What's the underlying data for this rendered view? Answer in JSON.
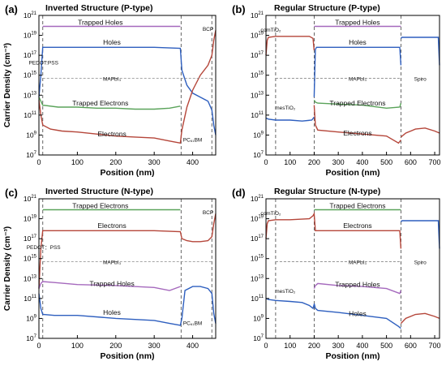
{
  "figure": {
    "axis_colors": {
      "axis": "#000000",
      "divider": "#555555",
      "region_line": "#888888"
    },
    "series_colors": {
      "trapped_top": "#a569bd",
      "trapped_top_e": "#5aa35a",
      "majority_h": "#2e5fbf",
      "majority_e": "#b5463a",
      "minority_e": "#b5463a",
      "minority_h": "#2e5fbf",
      "trapped_e": "#5aa35a",
      "trapped_h": "#a569bd"
    }
  },
  "chart_data": [
    {
      "panel": "(a)",
      "title": "Inverted Structure (P-type)",
      "type": "line",
      "xlabel": "Position (nm)",
      "ylabel": "Carrier Density (cm⁻³)",
      "xlim": [
        0,
        460
      ],
      "ylim_log10": [
        7,
        21
      ],
      "xticks": [
        0,
        100,
        200,
        300,
        400
      ],
      "yticks": [
        "10^7",
        "10^9",
        "10^11",
        "10^13",
        "10^15",
        "10^17",
        "10^19",
        "10^21"
      ],
      "dividers_x": [
        10,
        370,
        450
      ],
      "region_labels": [
        {
          "text": "Trapped Holes",
          "x": 160,
          "y": 20.3
        },
        {
          "text": "Holes",
          "x": 190,
          "y": 18.3
        },
        {
          "text": "MAPbI₃",
          "x": 190,
          "y": 14.7
        },
        {
          "text": "Trapped Electrons",
          "x": 160,
          "y": 12.2
        },
        {
          "text": "Electrons",
          "x": 190,
          "y": 9.1
        },
        {
          "text": "PEDOT:PSS",
          "x": 12,
          "y": 16.3
        },
        {
          "text": "PC₆₁BM",
          "x": 400,
          "y": 8.6
        },
        {
          "text": "BCP",
          "x": 440,
          "y": 19.7
        }
      ],
      "series": [
        {
          "key": "trapped_top",
          "x": [
            10,
            368
          ],
          "y": [
            19.9,
            19.9
          ]
        },
        {
          "key": "majority_h",
          "x": [
            0,
            5,
            10,
            50,
            100,
            200,
            300,
            368,
            372,
            385,
            400,
            420,
            440,
            450,
            455,
            460
          ],
          "y": [
            12.8,
            15.0,
            17.8,
            17.8,
            17.8,
            17.8,
            17.8,
            17.7,
            15.5,
            14.0,
            13.2,
            12.8,
            12.4,
            11.5,
            10.0,
            9.0
          ]
        },
        {
          "key": "minority_e",
          "x": [
            0,
            5,
            10,
            30,
            60,
            100,
            150,
            200,
            250,
            300,
            340,
            368,
            372,
            385,
            400,
            420,
            440,
            450,
            455,
            460
          ],
          "y": [
            12.5,
            11.0,
            10.0,
            9.6,
            9.4,
            9.3,
            9.1,
            8.9,
            8.8,
            8.7,
            8.4,
            8.2,
            9.5,
            11.8,
            13.5,
            15.0,
            16.0,
            17.0,
            18.5,
            19.5
          ]
        },
        {
          "key": "trapped_e",
          "x": [
            0,
            5,
            10,
            50,
            100,
            150,
            200,
            250,
            300,
            340,
            368
          ],
          "y": [
            12.8,
            12.4,
            12.0,
            11.8,
            11.8,
            11.7,
            11.7,
            11.6,
            11.6,
            11.7,
            11.9
          ]
        }
      ]
    },
    {
      "panel": "(b)",
      "title": "Regular Structure (P-type)",
      "type": "line",
      "xlabel": "Position (nm)",
      "ylabel": "",
      "xlim": [
        0,
        720
      ],
      "ylim_log10": [
        7,
        21
      ],
      "xticks": [
        0,
        100,
        200,
        300,
        400,
        500,
        600,
        700
      ],
      "yticks": [
        "10^7",
        "10^9",
        "10^11",
        "10^13",
        "10^15",
        "10^17",
        "10^19",
        "10^21"
      ],
      "dividers_x": [
        40,
        200,
        560
      ],
      "region_labels": [
        {
          "text": "comTiO₂",
          "x": 20,
          "y": 19.6
        },
        {
          "text": "Trapped Holes",
          "x": 380,
          "y": 20.3
        },
        {
          "text": "Holes",
          "x": 380,
          "y": 18.3
        },
        {
          "text": "MAPbI₃",
          "x": 380,
          "y": 14.7
        },
        {
          "text": "Spiro",
          "x": 640,
          "y": 14.7
        },
        {
          "text": "mesTiO₂",
          "x": 80,
          "y": 11.8
        },
        {
          "text": "Trapped Electrons",
          "x": 380,
          "y": 12.2
        },
        {
          "text": "Electrons",
          "x": 380,
          "y": 9.2
        }
      ],
      "series": [
        {
          "key": "trapped_top",
          "x": [
            200,
            560
          ],
          "y": [
            19.9,
            19.9
          ]
        },
        {
          "key": "minority_e",
          "x": [
            0,
            5,
            10,
            40,
            100,
            180,
            195,
            200
          ],
          "y": [
            17.0,
            18.5,
            18.8,
            18.9,
            18.9,
            18.9,
            18.7,
            17.5
          ]
        },
        {
          "key": "majority_h",
          "x": [
            0,
            10,
            40,
            100,
            150,
            190,
            200
          ],
          "y": [
            10.7,
            10.6,
            10.5,
            10.5,
            10.4,
            10.5,
            10.8
          ]
        },
        {
          "key": "majority_h",
          "x": [
            200,
            205,
            210,
            300,
            400,
            500,
            555,
            560
          ],
          "y": [
            12.8,
            17.6,
            17.8,
            17.8,
            17.8,
            17.8,
            17.8,
            16.0
          ]
        },
        {
          "key": "majority_h",
          "x": [
            560,
            565,
            600,
            700,
            715,
            720
          ],
          "y": [
            18.7,
            18.8,
            18.8,
            18.8,
            18.8,
            16.0
          ]
        },
        {
          "key": "trapped_e",
          "x": [
            200,
            205,
            215,
            300,
            400,
            500,
            555,
            560
          ],
          "y": [
            12.5,
            12.3,
            12.2,
            12.1,
            12.0,
            11.7,
            11.8,
            12.2
          ]
        },
        {
          "key": "minority_e",
          "x": [
            200,
            205,
            215,
            300,
            400,
            500,
            550,
            560
          ],
          "y": [
            12.0,
            10.0,
            9.5,
            9.3,
            9.1,
            8.9,
            8.2,
            8.5
          ]
        },
        {
          "key": "minority_e",
          "x": [
            560,
            580,
            620,
            660,
            700,
            720
          ],
          "y": [
            8.8,
            9.2,
            9.6,
            9.7,
            9.4,
            9.2
          ]
        }
      ]
    },
    {
      "panel": "(c)",
      "title": "Inverted Structure (N-type)",
      "type": "line",
      "xlabel": "Position (nm)",
      "ylabel": "Carrier Density (cm⁻³)",
      "xlim": [
        0,
        460
      ],
      "ylim_log10": [
        7,
        21
      ],
      "xticks": [
        0,
        100,
        200,
        300,
        400
      ],
      "yticks": [
        "10^7",
        "10^9",
        "10^11",
        "10^13",
        "10^15",
        "10^17",
        "10^19",
        "10^21"
      ],
      "dividers_x": [
        10,
        370,
        450
      ],
      "region_labels": [
        {
          "text": "Trapped Electrons",
          "x": 160,
          "y": 20.3
        },
        {
          "text": "Electrons",
          "x": 190,
          "y": 18.3
        },
        {
          "text": "PEDOT：PSS",
          "x": 12,
          "y": 16.2
        },
        {
          "text": "MAPbI₃",
          "x": 190,
          "y": 14.7
        },
        {
          "text": "Trapped Holes",
          "x": 190,
          "y": 12.5
        },
        {
          "text": "Holes",
          "x": 190,
          "y": 9.6
        },
        {
          "text": "PC₆₁BM",
          "x": 400,
          "y": 8.6
        },
        {
          "text": "BCP",
          "x": 440,
          "y": 19.7
        }
      ],
      "series": [
        {
          "key": "trapped_top_e",
          "x": [
            10,
            368
          ],
          "y": [
            19.9,
            19.9
          ]
        },
        {
          "key": "majority_e",
          "x": [
            0,
            5,
            10,
            50,
            100,
            200,
            300,
            368,
            372,
            385,
            400,
            420,
            440,
            450,
            455,
            460
          ],
          "y": [
            12.0,
            16.0,
            17.8,
            17.8,
            17.8,
            17.8,
            17.8,
            17.7,
            17.0,
            16.8,
            16.7,
            16.7,
            16.8,
            17.2,
            18.5,
            19.5
          ]
        },
        {
          "key": "trapped_h",
          "x": [
            0,
            5,
            10,
            40,
            100,
            200,
            300,
            340,
            368
          ],
          "y": [
            12.0,
            12.5,
            12.7,
            12.6,
            12.4,
            12.3,
            12.1,
            11.8,
            12.2
          ]
        },
        {
          "key": "minority_h",
          "x": [
            0,
            5,
            10,
            40,
            100,
            200,
            300,
            340,
            368,
            372,
            380,
            400,
            420,
            440,
            450,
            455,
            460
          ],
          "y": [
            11.5,
            10.0,
            9.4,
            9.3,
            9.3,
            9.0,
            8.8,
            8.5,
            8.3,
            9.0,
            11.8,
            12.2,
            12.2,
            12.0,
            11.5,
            9.5,
            8.5
          ]
        }
      ]
    },
    {
      "panel": "(d)",
      "title": "Regular Structure (N-type)",
      "type": "line",
      "xlabel": "Position (nm)",
      "ylabel": "",
      "xlim": [
        0,
        720
      ],
      "ylim_log10": [
        7,
        21
      ],
      "xticks": [
        0,
        100,
        200,
        300,
        400,
        500,
        600,
        700
      ],
      "yticks": [
        "10^7",
        "10^9",
        "10^11",
        "10^13",
        "10^15",
        "10^17",
        "10^19",
        "10^21"
      ],
      "dividers_x": [
        40,
        200,
        560
      ],
      "region_labels": [
        {
          "text": "comTiO₂",
          "x": 20,
          "y": 19.6
        },
        {
          "text": "Trapped Electrons",
          "x": 380,
          "y": 20.3
        },
        {
          "text": "Electrons",
          "x": 380,
          "y": 18.3
        },
        {
          "text": "MAPbI₃",
          "x": 380,
          "y": 14.7
        },
        {
          "text": "Spiro",
          "x": 640,
          "y": 14.7
        },
        {
          "text": "mesTiO₂",
          "x": 80,
          "y": 11.8
        },
        {
          "text": "Trapped Holes",
          "x": 380,
          "y": 12.4
        },
        {
          "text": "Holes",
          "x": 380,
          "y": 9.5
        }
      ],
      "series": [
        {
          "key": "trapped_top_e",
          "x": [
            200,
            560
          ],
          "y": [
            19.9,
            19.9
          ]
        },
        {
          "key": "majority_e",
          "x": [
            0,
            5,
            10,
            40,
            100,
            180,
            195,
            200,
            205,
            215,
            300,
            400,
            500,
            555,
            560
          ],
          "y": [
            17.0,
            18.5,
            18.8,
            18.9,
            18.9,
            19.0,
            19.3,
            19.5,
            17.8,
            17.8,
            17.8,
            17.8,
            17.8,
            17.8,
            16.0
          ]
        },
        {
          "key": "minority_h",
          "x": [
            0,
            10,
            40,
            100,
            150,
            180,
            195,
            200
          ],
          "y": [
            11.0,
            10.9,
            10.8,
            10.7,
            10.6,
            10.3,
            10.0,
            10.4
          ]
        },
        {
          "key": "minority_h",
          "x": [
            560,
            565,
            600,
            700,
            715,
            720
          ],
          "y": [
            18.7,
            18.8,
            18.8,
            18.8,
            18.8,
            16.0
          ]
        },
        {
          "key": "trapped_h",
          "x": [
            200,
            205,
            215,
            300,
            400,
            500,
            555,
            560
          ],
          "y": [
            12.0,
            12.3,
            12.5,
            12.3,
            12.2,
            12.0,
            11.5,
            11.8
          ]
        },
        {
          "key": "minority_h",
          "x": [
            200,
            205,
            215,
            300,
            400,
            500,
            550,
            560
          ],
          "y": [
            10.5,
            10.0,
            9.8,
            9.6,
            9.3,
            9.0,
            8.2,
            8.0
          ]
        },
        {
          "key": "minority_e",
          "x": [
            560,
            580,
            620,
            660,
            700,
            720
          ],
          "y": [
            8.5,
            9.0,
            9.4,
            9.5,
            9.2,
            9.0
          ]
        }
      ]
    }
  ]
}
